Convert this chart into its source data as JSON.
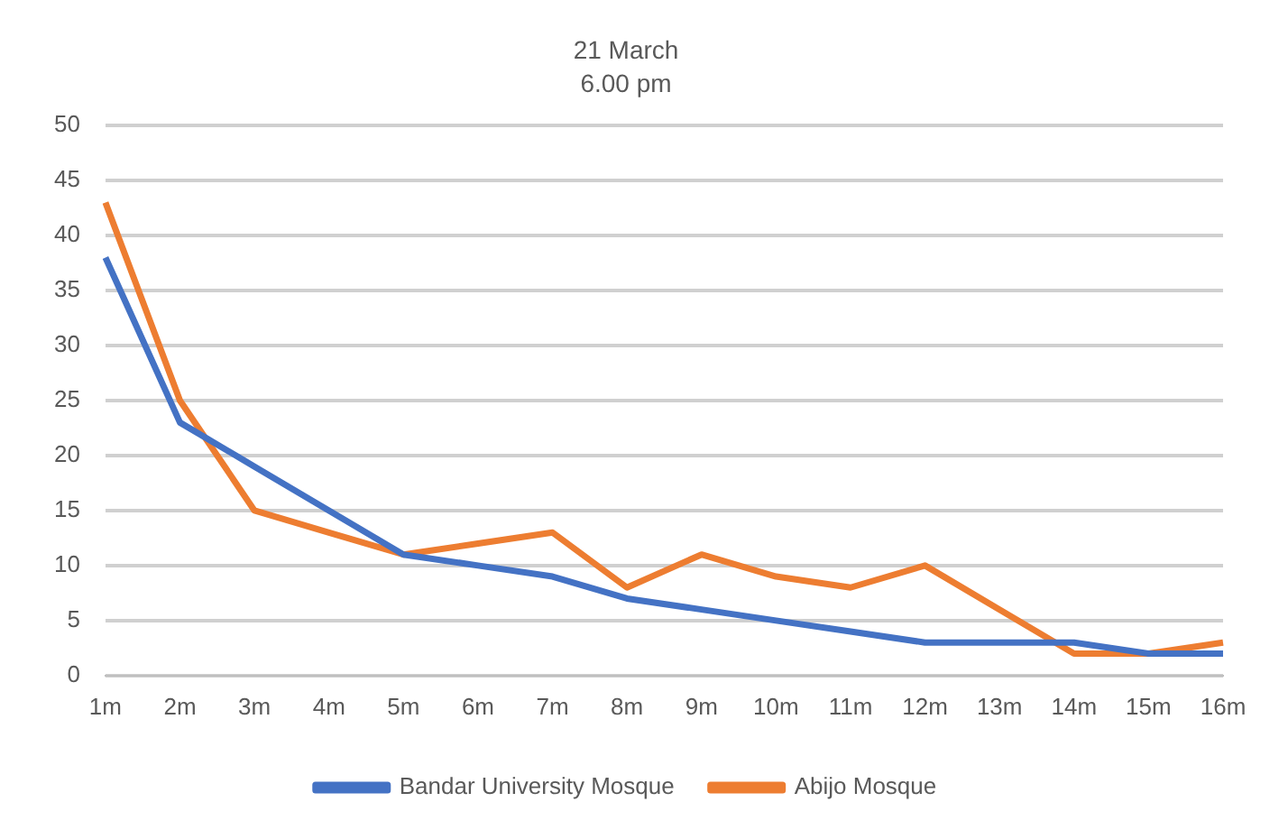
{
  "chart_data": {
    "type": "line",
    "title": "21 March",
    "subtitle": "6.00 pm",
    "categories": [
      "1m",
      "2m",
      "3m",
      "4m",
      "5m",
      "6m",
      "7m",
      "8m",
      "9m",
      "10m",
      "11m",
      "12m",
      "13m",
      "14m",
      "15m",
      "16m"
    ],
    "series": [
      {
        "name": "Bandar University Mosque",
        "color": "#4472c4",
        "values": [
          38,
          23,
          19,
          15,
          11,
          10,
          9,
          7,
          6,
          5,
          4,
          3,
          3,
          3,
          2,
          2
        ]
      },
      {
        "name": "Abijo Mosque",
        "color": "#ed7d31",
        "values": [
          43,
          25,
          15,
          13,
          11,
          12,
          13,
          8,
          11,
          9,
          8,
          10,
          6,
          2,
          2,
          3
        ]
      }
    ],
    "ylim": [
      0,
      50
    ],
    "yticks": [
      0,
      5,
      10,
      15,
      20,
      25,
      30,
      35,
      40,
      45,
      50
    ],
    "grid": "y",
    "legend": "bottom",
    "marker": "none",
    "line_style": "solid"
  }
}
